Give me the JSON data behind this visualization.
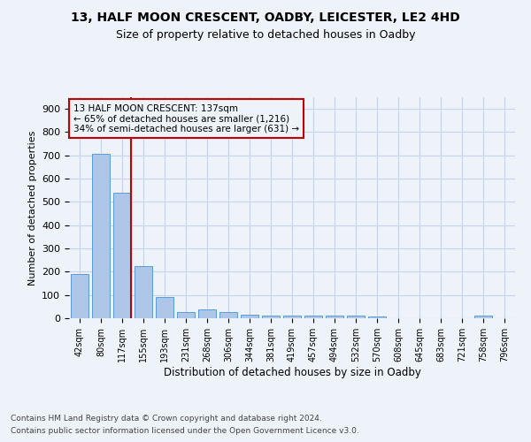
{
  "title1": "13, HALF MOON CRESCENT, OADBY, LEICESTER, LE2 4HD",
  "title2": "Size of property relative to detached houses in Oadby",
  "xlabel": "Distribution of detached houses by size in Oadby",
  "ylabel": "Number of detached properties",
  "footer1": "Contains HM Land Registry data © Crown copyright and database right 2024.",
  "footer2": "Contains public sector information licensed under the Open Government Licence v3.0.",
  "annotation_line1": "13 HALF MOON CRESCENT: 137sqm",
  "annotation_line2": "← 65% of detached houses are smaller (1,216)",
  "annotation_line3": "34% of semi-detached houses are larger (631) →",
  "bar_labels": [
    "42sqm",
    "80sqm",
    "117sqm",
    "155sqm",
    "193sqm",
    "231sqm",
    "268sqm",
    "306sqm",
    "344sqm",
    "381sqm",
    "419sqm",
    "457sqm",
    "494sqm",
    "532sqm",
    "570sqm",
    "608sqm",
    "645sqm",
    "683sqm",
    "721sqm",
    "758sqm",
    "796sqm"
  ],
  "bar_values": [
    190,
    705,
    540,
    225,
    90,
    28,
    38,
    25,
    15,
    13,
    12,
    12,
    10,
    10,
    8,
    0,
    0,
    0,
    0,
    10,
    0
  ],
  "bar_color": "#aec6e8",
  "bar_edgecolor": "#5b9bd5",
  "ref_line_color": "#c00000",
  "ylim": [
    0,
    950
  ],
  "yticks": [
    0,
    100,
    200,
    300,
    400,
    500,
    600,
    700,
    800,
    900
  ],
  "annotation_box_color": "#c00000",
  "background_color": "#eef2f9",
  "grid_color": "#c8d4e8"
}
